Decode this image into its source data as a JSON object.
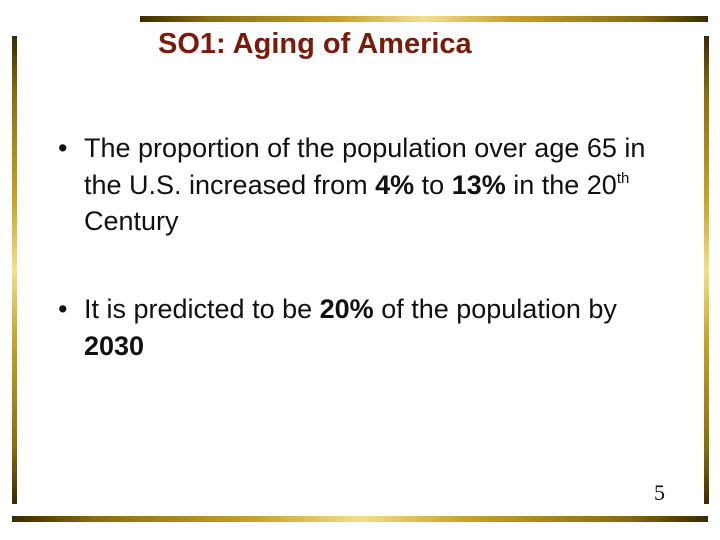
{
  "slide": {
    "title": "SO1: Aging of America",
    "bullet_marker": "•",
    "bullet1": {
      "t1": "The proportion of the population over age 65 in the U.S. increased from ",
      "b1": "4%",
      "t2": " to ",
      "b2": "13%",
      "t3": " in the 20",
      "sup": "th",
      "t4": " Century"
    },
    "bullet2": {
      "t1": "It is predicted to be ",
      "b1": "20%",
      "t2": " of the population by ",
      "b2": "2030"
    },
    "page_number": "5"
  }
}
